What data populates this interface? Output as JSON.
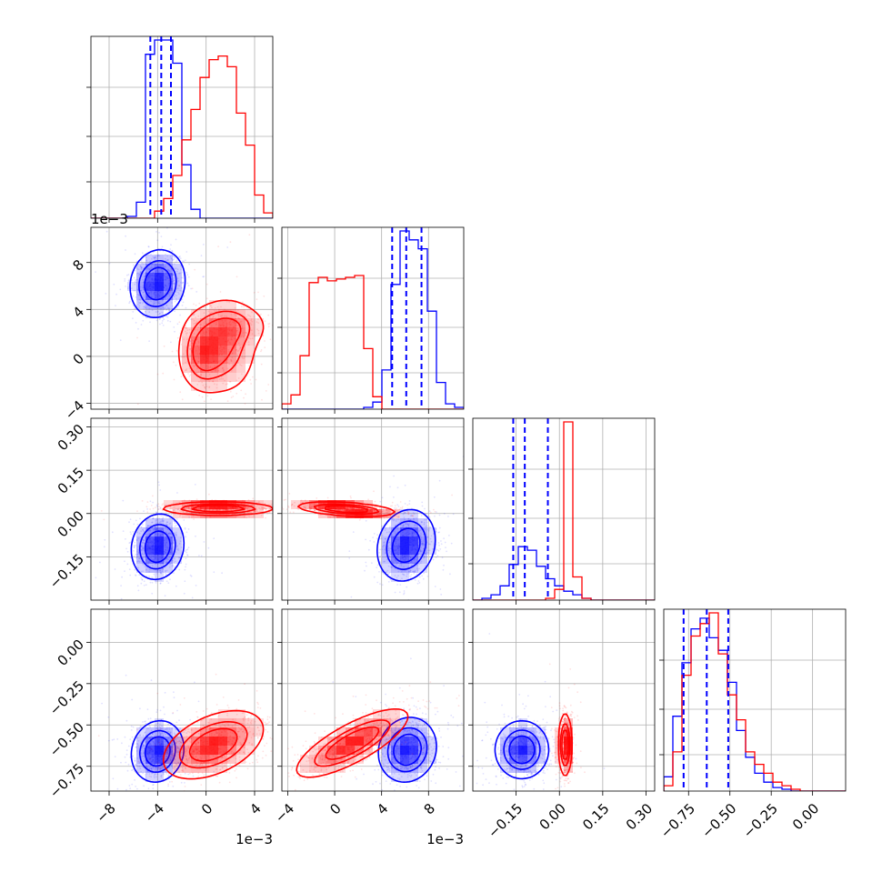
{
  "chart_data": {
    "type": "corner",
    "grid": true,
    "colors": {
      "series_a": "#0000ff",
      "series_b": "#ff0000"
    },
    "parameters": [
      {
        "range": [
          -9.5,
          5.5
        ],
        "ticks": [
          -8,
          -4,
          0,
          4
        ],
        "tick_labels": [
          "−8",
          "−4",
          "0",
          "4"
        ],
        "offset_label": "1e−3"
      },
      {
        "range": [
          -4.5,
          11
        ],
        "ticks": [
          -4,
          0,
          4,
          8
        ],
        "tick_labels": [
          "−4",
          "0",
          "4",
          "8"
        ],
        "offset_label": "1e−3"
      },
      {
        "range": [
          -0.3,
          0.33
        ],
        "ticks": [
          -0.15,
          0,
          0.15,
          0.3
        ],
        "tick_labels": [
          "−0.15",
          "0.00",
          "0.15",
          "0.30"
        ],
        "offset_label": ""
      },
      {
        "range": [
          -0.9,
          0.2
        ],
        "ticks": [
          -0.75,
          -0.5,
          -0.25,
          0
        ],
        "tick_labels": [
          "−0.75",
          "−0.50",
          "−0.25",
          "0.00"
        ],
        "offset_label": ""
      }
    ],
    "y_axis_ticks": {
      "1": {
        "ticks": [
          -4,
          0,
          4,
          8
        ],
        "tick_labels": [
          "−4",
          "0",
          "4",
          "8"
        ]
      },
      "2": {
        "ticks": [
          -0.15,
          0,
          0.15,
          0.3
        ],
        "tick_labels": [
          "−0.15",
          "0.00",
          "0.15",
          "0.30"
        ]
      },
      "3": {
        "ticks": [
          -0.75,
          -0.5,
          -0.25,
          0
        ],
        "tick_labels": [
          "−0.75",
          "−0.50",
          "−0.25",
          "0.00"
        ]
      }
    },
    "quantiles_series_a": [
      [
        -4.6,
        -3.7,
        -2.9
      ],
      [
        4.9,
        6.1,
        7.4
      ],
      [
        -0.16,
        -0.12,
        -0.04
      ],
      [
        -0.78,
        -0.64,
        -0.51
      ]
    ],
    "histograms": [
      {
        "edges": [
          -9.5,
          -8.75,
          -8.0,
          -7.25,
          -6.5,
          -5.75,
          -5.0,
          -4.25,
          -3.5,
          -2.75,
          -2.0,
          -1.25,
          -0.5,
          0.25,
          1.0,
          1.75,
          2.5,
          3.25,
          4.0,
          4.75,
          5.5
        ],
        "series_a": [
          0,
          0,
          0,
          0,
          1,
          9,
          92,
          100,
          100,
          87,
          30,
          5,
          0,
          0,
          0,
          0,
          0,
          0,
          0,
          0
        ],
        "series_b": [
          0,
          0,
          0,
          0,
          0,
          0,
          0,
          4,
          11,
          24,
          44,
          61,
          79,
          89,
          91,
          85,
          59,
          41,
          13,
          3
        ]
      },
      {
        "edges": [
          -4.5,
          -3.725,
          -2.95,
          -2.175,
          -1.4,
          -0.625,
          0.15,
          0.925,
          1.7,
          2.475,
          3.25,
          4.025,
          4.8,
          5.575,
          6.35,
          7.125,
          7.9,
          8.675,
          9.45,
          10.225,
          11.0
        ],
        "series_a": [
          0,
          0,
          0,
          0,
          0,
          0,
          0,
          0,
          0,
          1,
          4,
          22,
          70,
          100,
          95,
          90,
          55,
          15,
          3,
          1
        ],
        "series_b": [
          3,
          8,
          30,
          71,
          74,
          72,
          73,
          74,
          75,
          34,
          7,
          0,
          0,
          0,
          0,
          0,
          0,
          0,
          0,
          0
        ]
      },
      {
        "edges": [
          -0.3,
          -0.2685,
          -0.237,
          -0.2055,
          -0.174,
          -0.1425,
          -0.111,
          -0.0795,
          -0.048,
          -0.0165,
          0.015,
          0.0465,
          0.078,
          0.1095,
          0.141,
          0.1725,
          0.204,
          0.2355,
          0.267,
          0.2985,
          0.33
        ],
        "series_a": [
          0,
          1,
          3,
          8,
          20,
          30,
          28,
          19,
          12,
          8,
          5,
          3,
          1,
          0,
          0,
          0,
          0,
          0,
          0,
          0
        ],
        "series_b": [
          0,
          0,
          0,
          0,
          0,
          0,
          0,
          0,
          1,
          6,
          100,
          13,
          1,
          0,
          0,
          0,
          0,
          0,
          0,
          0
        ]
      },
      {
        "edges": [
          -0.9,
          -0.845,
          -0.79,
          -0.735,
          -0.68,
          -0.625,
          -0.57,
          -0.515,
          -0.46,
          -0.405,
          -0.35,
          -0.295,
          -0.24,
          -0.185,
          -0.13,
          -0.075,
          -0.02,
          0.035,
          0.09,
          0.145,
          0.2
        ],
        "series_a": [
          8,
          42,
          72,
          91,
          97,
          86,
          79,
          61,
          34,
          19,
          10,
          5,
          2,
          1,
          0,
          0,
          0,
          0,
          0,
          0
        ],
        "series_b": [
          3,
          22,
          65,
          87,
          94,
          100,
          77,
          54,
          40,
          22,
          15,
          10,
          5,
          3,
          1,
          0,
          0,
          0,
          0,
          0
        ]
      }
    ],
    "blob_components": {
      "1-0": {
        "series_a": [
          {
            "cx": -4.0,
            "cy": 6.2,
            "sx": 1.1,
            "sy": 1.4,
            "rho": 0.1,
            "w": 1.0
          }
        ],
        "series_b": [
          {
            "cx": -0.3,
            "cy": 0.3,
            "sx": 1.0,
            "sy": 1.6,
            "rho": 0.0,
            "w": 0.45
          },
          {
            "cx": 1.6,
            "cy": 0.8,
            "sx": 1.3,
            "sy": 2.0,
            "rho": 0.0,
            "w": 0.35
          },
          {
            "cx": 2.0,
            "cy": 2.6,
            "sx": 1.6,
            "sy": 1.0,
            "rho": 0.0,
            "w": 0.25
          }
        ]
      },
      "2-0": {
        "series_a": [
          {
            "cx": -4.0,
            "cy": -0.115,
            "sx": 1.05,
            "sy": 0.055,
            "rho": 0.1,
            "w": 1.0
          }
        ],
        "series_b": [
          {
            "cx": 1.0,
            "cy": 0.017,
            "sx": 2.2,
            "sy": 0.011,
            "rho": 0.0,
            "w": 1.0
          }
        ]
      },
      "2-1": {
        "series_a": [
          {
            "cx": 6.1,
            "cy": -0.11,
            "sx": 1.2,
            "sy": 0.06,
            "rho": 0.15,
            "w": 1.0
          }
        ],
        "series_b": [
          {
            "cx": 1.0,
            "cy": 0.015,
            "sx": 2.0,
            "sy": 0.012,
            "rho": -0.4,
            "w": 1.0
          }
        ]
      },
      "3-0": {
        "series_a": [
          {
            "cx": -4.0,
            "cy": -0.66,
            "sx": 1.05,
            "sy": 0.09,
            "rho": 0.1,
            "w": 1.0
          }
        ],
        "series_b": [
          {
            "cx": 0.6,
            "cy": -0.62,
            "sx": 2.0,
            "sy": 0.1,
            "rho": 0.45,
            "w": 1.0
          }
        ]
      },
      "3-1": {
        "series_a": [
          {
            "cx": 6.2,
            "cy": -0.65,
            "sx": 1.2,
            "sy": 0.095,
            "rho": 0.1,
            "w": 1.0
          }
        ],
        "series_b": [
          {
            "cx": 1.5,
            "cy": -0.61,
            "sx": 2.3,
            "sy": 0.1,
            "rho": 0.78,
            "w": 1.0
          }
        ]
      },
      "3-2": {
        "series_a": [
          {
            "cx": -0.13,
            "cy": -0.65,
            "sx": 0.045,
            "sy": 0.085,
            "rho": 0.0,
            "w": 1.0
          }
        ],
        "series_b": [
          {
            "cx": 0.02,
            "cy": -0.62,
            "sx": 0.011,
            "sy": 0.09,
            "rho": 0.0,
            "w": 1.0
          }
        ]
      }
    }
  }
}
